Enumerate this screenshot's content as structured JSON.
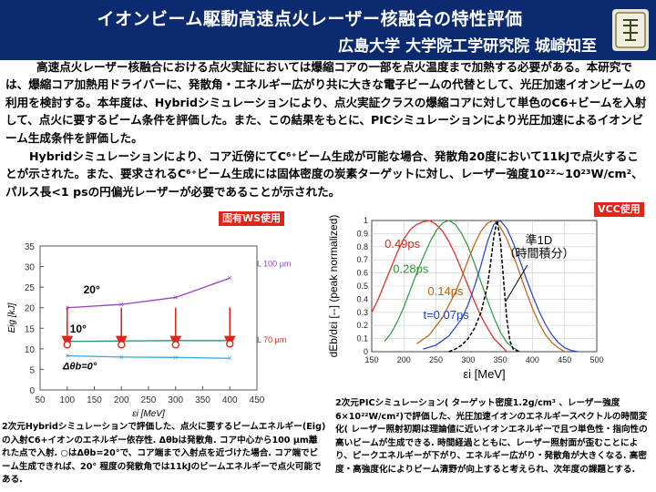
{
  "header": {
    "title": "イオンビーム駆動高速点火レーザー核融合の特性評価",
    "affiliation": "広島大学 大学院工学研究院 城崎知至"
  },
  "abstract": {
    "paragraph1": "高速点火レーザー核融合における点火実証においては爆縮コアの一部を点火温度まで加熱する必要がある。本研究では、爆縮コア加熱用ドライバーに、発散角・エネルギー広がり共に大きな電子ビームの代替として、光圧加速イオンビームの利用を検討する。本年度は、Hybridシミュレーションにより、点火実証クラスの爆縮コアに対して単色のC6+ビームを入射して、点火に要するビーム条件を評価した。また、この結果をもとに、PICシミュレーションにより光圧加速によるイオンビーム生成条件を評価した。",
    "paragraph2": "Hybridシミュレーションにより、コア近傍にてC⁶⁺ビーム生成が可能な場合、発散角20度において11kJで点火することが示された。また、要求されるC⁶⁺ビーム生成には固体密度の炭素ターゲットに対し、レーザー強度10²²~10²³W/cm²、パルス長<1 psの円偏光レーザーが必要であることが示された。"
  },
  "badges": {
    "left": "固有WS使用",
    "right": "VCC使用"
  },
  "chart_data": [
    {
      "type": "line",
      "xlabel": "εi [MeV]",
      "ylabel": "Eig [kJ]",
      "xlim": [
        50,
        450
      ],
      "ylim": [
        0,
        35
      ],
      "xticks": [
        50,
        100,
        150,
        200,
        250,
        300,
        350,
        400,
        450
      ],
      "yticks": [
        0,
        5,
        10,
        15,
        20,
        25,
        30,
        35
      ],
      "annotations": {
        "angle20": "20°",
        "angle10": "10°",
        "angle0": "Δθb=0°",
        "spot100": "L 100 μm",
        "spot70": "L 70 μm"
      },
      "series": [
        {
          "key": "deg20",
          "color": "#9a3fc9",
          "x": [
            100,
            200,
            300,
            400
          ],
          "y": [
            20.0,
            20.8,
            22.5,
            27.2
          ]
        },
        {
          "key": "deg10",
          "color": "#2f8f6f",
          "x": [
            100,
            200,
            300,
            400
          ],
          "y": [
            11.8,
            11.9,
            12.0,
            12.0
          ]
        },
        {
          "key": "deg0",
          "color": "#38a8d8",
          "x": [
            100,
            200,
            300,
            400
          ],
          "y": [
            8.3,
            8.0,
            7.9,
            7.7
          ]
        }
      ],
      "arrows": {
        "color": "#e0251a",
        "x": [
          100,
          200,
          300,
          400
        ],
        "from": 20,
        "to": 12
      },
      "circles": {
        "color": "#e0251a",
        "x": [
          100,
          200,
          300,
          400
        ],
        "y": [
          11.0,
          11.0,
          11.0,
          11.2
        ]
      }
    },
    {
      "type": "line",
      "xlabel": "εi [MeV]",
      "ylabel": "dEb/dεi [--] (peak normalized)",
      "xlim": [
        150,
        500
      ],
      "ylim": [
        0,
        1
      ],
      "xticks": [
        150,
        200,
        250,
        300,
        350,
        400,
        450,
        500
      ],
      "yticks": [
        0,
        0.1,
        0.2,
        0.3,
        0.4,
        0.5,
        0.6,
        0.7,
        0.8,
        0.9,
        1
      ],
      "quasi_label_line1": "準1D",
      "quasi_label_line2": "（時間積分）",
      "series": [
        {
          "name": "0.49ps",
          "color": "#e0251a",
          "x": [
            150,
            160,
            170,
            180,
            190,
            200,
            210,
            220,
            230,
            240,
            250,
            260,
            270,
            280,
            290,
            300,
            310,
            320,
            330,
            340,
            350,
            360
          ],
          "y": [
            0.3,
            0.4,
            0.52,
            0.64,
            0.76,
            0.86,
            0.93,
            0.97,
            0.99,
            1.0,
            0.97,
            0.92,
            0.84,
            0.74,
            0.62,
            0.5,
            0.38,
            0.27,
            0.18,
            0.1,
            0.05,
            0.0
          ]
        },
        {
          "name": "0.28ps",
          "color": "#2a9a3a",
          "x": [
            170,
            180,
            190,
            200,
            210,
            220,
            230,
            240,
            250,
            260,
            270,
            280,
            290,
            300,
            310,
            320,
            330,
            340,
            350,
            360,
            370,
            380
          ],
          "y": [
            0.08,
            0.14,
            0.23,
            0.34,
            0.47,
            0.6,
            0.72,
            0.83,
            0.92,
            0.98,
            1.0,
            0.97,
            0.9,
            0.8,
            0.67,
            0.53,
            0.39,
            0.26,
            0.15,
            0.07,
            0.03,
            0.0
          ]
        },
        {
          "name": "0.14ps",
          "color": "#c06010",
          "x": [
            220,
            240,
            260,
            280,
            290,
            300,
            310,
            320,
            330,
            340,
            350,
            360,
            370,
            380,
            390,
            400,
            410,
            420,
            430,
            440,
            450
          ],
          "y": [
            0.06,
            0.13,
            0.26,
            0.45,
            0.57,
            0.7,
            0.82,
            0.92,
            0.98,
            1.0,
            0.95,
            0.86,
            0.74,
            0.6,
            0.46,
            0.33,
            0.22,
            0.13,
            0.07,
            0.03,
            0.0
          ]
        },
        {
          "name": "t=0.07ps",
          "color": "#1f3fd0",
          "x": [
            230,
            250,
            270,
            290,
            300,
            310,
            320,
            330,
            340,
            350,
            360,
            370,
            380,
            390,
            400,
            410,
            420,
            430,
            440,
            450,
            460,
            470
          ],
          "y": [
            0.02,
            0.05,
            0.12,
            0.25,
            0.36,
            0.5,
            0.66,
            0.84,
            0.97,
            1.0,
            0.94,
            0.83,
            0.7,
            0.56,
            0.43,
            0.31,
            0.21,
            0.13,
            0.07,
            0.03,
            0.01,
            0.0
          ]
        },
        {
          "name": "quasi-1D",
          "color": "#000000",
          "x": [
            270,
            280,
            290,
            300,
            310,
            320,
            330,
            335,
            340,
            345,
            350,
            355,
            360,
            365,
            370,
            380
          ],
          "y": [
            0.0,
            0.02,
            0.05,
            0.1,
            0.18,
            0.3,
            0.5,
            0.68,
            0.88,
            1.0,
            0.85,
            0.55,
            0.25,
            0.08,
            0.02,
            0.0
          ]
        }
      ]
    }
  ],
  "captions": {
    "left": "2次元Hybridシミュレーションで評価した、点火に要するビームエネルギー(Eig)の入射C6+イオンのエネルギー依存性. Δθbは発散角. コア中心から100 μm離れた点で入射. ○はΔθb=20°で、コア端まで入射点を近づけた場合. コア端でビーム生成できれば、20° 程度の発散角では11kJのビームエネルギーで点火可能である.",
    "right": "2次元PICシミュレーション( ターゲット密度1.2g/cm³ 、レーザー強度 6×10²²W/cm²)で評価した、光圧加速イオンのエネルギースペクトルの時間変化( レーザー照射初期は理論値に近いイオンエネルギーで且つ単色性・指向性の高いビームが生成できる. 時間経過とともに、レーザー照射面が歪むことにより、ピークエネルギーが下がり、エネルギー広がり・発散角が大きくなる. 高密度・高強度化によりビーム清野が向上すると考えられ、次年度の課題とする."
  }
}
